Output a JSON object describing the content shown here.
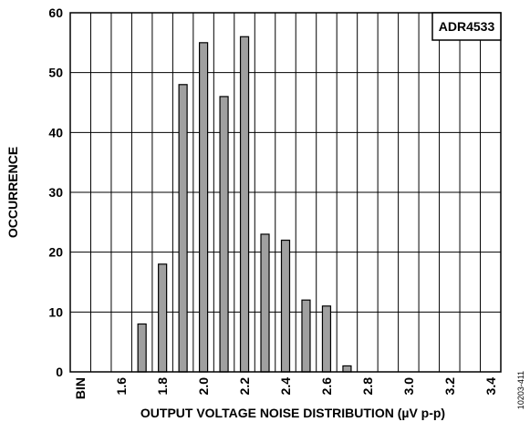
{
  "chart_data": {
    "type": "bar",
    "title": "",
    "xlabel": "OUTPUT VOLTAGE NOISE DISTRIBUTION (µV p-p)",
    "ylabel": "OCCURRENCE",
    "legend_label": "ADR4533",
    "legend_placement": "top-right",
    "figure_id": "10203-411",
    "grid": true,
    "ylim": [
      0,
      60
    ],
    "yticks": [
      0,
      10,
      20,
      30,
      40,
      50,
      60
    ],
    "xlabels": [
      "BIN",
      "1.6",
      "1.8",
      "2.0",
      "2.2",
      "2.4",
      "2.6",
      "2.8",
      "3.0",
      "3.2",
      "3.4"
    ],
    "categories": [
      "1.5",
      "1.6",
      "1.7",
      "1.8",
      "1.9",
      "2.0",
      "2.1",
      "2.2",
      "2.3",
      "2.4",
      "2.5",
      "2.6",
      "2.7",
      "2.8",
      "2.9",
      "3.0",
      "3.1",
      "3.2",
      "3.3",
      "3.4",
      "3.5"
    ],
    "values": [
      0,
      0,
      0,
      8,
      18,
      48,
      55,
      46,
      56,
      23,
      22,
      12,
      11,
      1,
      0,
      0,
      0,
      0,
      0,
      0,
      0
    ],
    "bar_color": "#a0a0a0"
  }
}
